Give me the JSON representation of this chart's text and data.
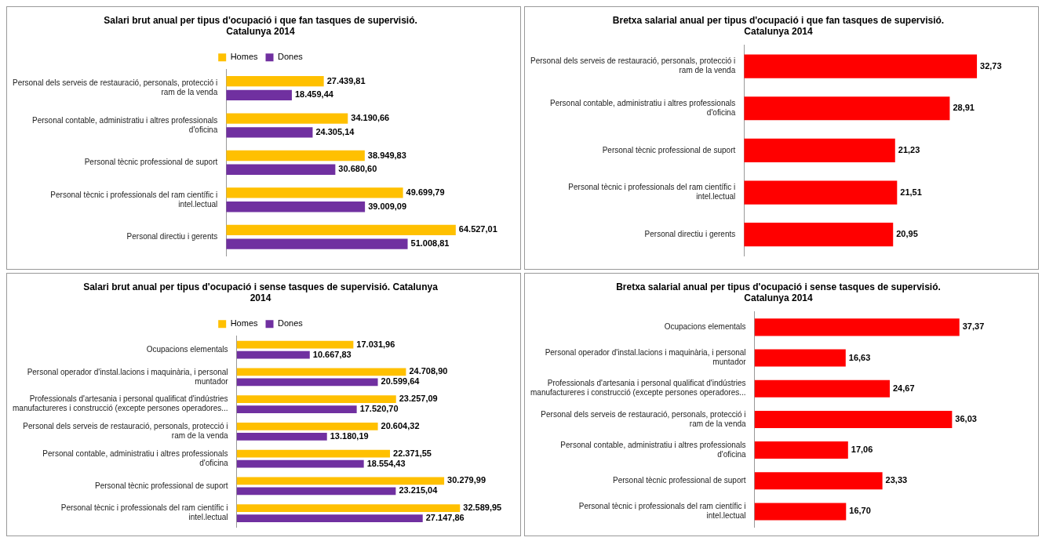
{
  "chart_data": [
    {
      "type": "bar",
      "orientation": "horizontal",
      "legend": "top",
      "title": "Salari brut anual per tipus d'ocupació i que fan tasques de supervisió. Catalunya 2014",
      "categories": [
        "Personal dels serveis de restauració, personals, protecció i ram de la venda",
        "Personal contable, administratiu i altres professionals d'oficina",
        "Personal tècnic professional de suport",
        "Personal tècnic i professionals del ram científic i intel.lectual",
        "Personal directiu i gerents"
      ],
      "series": [
        {
          "name": "Homes",
          "color": "#ffc000",
          "values": [
            27439.81,
            34190.66,
            38949.83,
            49699.79,
            64527.01
          ],
          "value_labels": [
            "27.439,81",
            "34.190,66",
            "38.949,83",
            "49.699,79",
            "64.527,01"
          ]
        },
        {
          "name": "Dones",
          "color": "#7030a0",
          "values": [
            18459.44,
            24305.14,
            30680.6,
            39009.09,
            51008.81
          ],
          "value_labels": [
            "18.459,44",
            "24.305,14",
            "30.680,60",
            "39.009,09",
            "51.008,81"
          ]
        }
      ]
    },
    {
      "type": "bar",
      "orientation": "horizontal",
      "title": "Bretxa salarial anual per tipus d'ocupació i que fan tasques de supervisió. Catalunya 2014",
      "categories": [
        "Personal dels serveis de restauració, personals, protecció i ram de la venda",
        "Personal contable, administratiu i altres professionals d'oficina",
        "Personal tècnic professional de suport",
        "Personal tècnic i professionals del ram científic i intel.lectual",
        "Personal directiu i gerents"
      ],
      "series": [
        {
          "color": "#ff0000",
          "values": [
            32.73,
            28.91,
            21.23,
            21.51,
            20.95
          ],
          "value_labels": [
            "32,73",
            "28,91",
            "21,23",
            "21,51",
            "20,95"
          ]
        }
      ]
    },
    {
      "type": "bar",
      "orientation": "horizontal",
      "legend": "top",
      "title": "Salari brut anual per tipus d'ocupació i sense tasques de supervisió. Catalunya 2014",
      "categories": [
        "Ocupacions elementals",
        "Personal operador d'instal.lacions i maquinària, i personal muntador",
        "Professionals d'artesania i personal qualificat d'indústries manufactureres i construcció (excepte persones operadores...",
        "Personal dels serveis de restauració, personals, protecció i ram de la venda",
        "Personal contable, administratiu i altres professionals d'oficina",
        "Personal tècnic professional de suport",
        "Personal tècnic i professionals del ram científic i intel.lectual"
      ],
      "series": [
        {
          "name": "Homes",
          "color": "#ffc000",
          "values": [
            17031.96,
            24708.9,
            23257.09,
            20604.32,
            22371.55,
            30279.99,
            32589.95
          ],
          "value_labels": [
            "17.031,96",
            "24.708,90",
            "23.257,09",
            "20.604,32",
            "22.371,55",
            "30.279,99",
            "32.589,95"
          ]
        },
        {
          "name": "Dones",
          "color": "#7030a0",
          "values": [
            10667.83,
            20599.64,
            17520.7,
            13180.19,
            18554.43,
            23215.04,
            27147.86
          ],
          "value_labels": [
            "10.667,83",
            "20.599,64",
            "17.520,70",
            "13.180,19",
            "18.554,43",
            "23.215,04",
            "27.147,86"
          ]
        }
      ]
    },
    {
      "type": "bar",
      "orientation": "horizontal",
      "title": "Bretxa salarial anual per tipus d'ocupació i sense tasques de supervisió. Catalunya 2014",
      "categories": [
        "Ocupacions elementals",
        "Personal operador d'instal.lacions i maquinària, i personal muntador",
        "Professionals d'artesania i personal qualificat d'indústries manufactureres i construcció (excepte persones operadores...",
        "Personal dels serveis de restauració, personals, protecció i ram de la venda",
        "Personal contable, administratiu i altres professionals d'oficina",
        "Personal tècnic professional de suport",
        "Personal tècnic i professionals del ram científic i intel.lectual"
      ],
      "series": [
        {
          "color": "#ff0000",
          "values": [
            37.37,
            16.63,
            24.67,
            36.03,
            17.06,
            23.33,
            16.7
          ],
          "value_labels": [
            "37,37",
            "16,63",
            "24,67",
            "36,03",
            "17,06",
            "23,33",
            "16,70"
          ]
        }
      ]
    }
  ]
}
